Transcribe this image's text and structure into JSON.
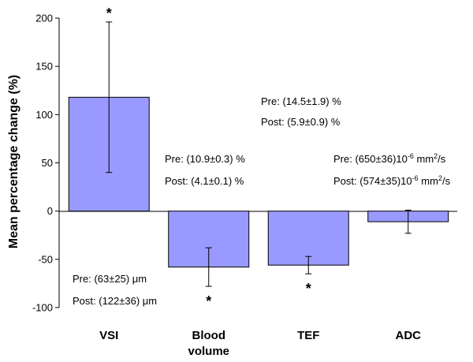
{
  "chart_data": {
    "type": "bar",
    "ylabel": "Mean percentage change (%)",
    "ylim": [
      -100,
      200
    ],
    "yticks": [
      -100,
      -50,
      0,
      50,
      100,
      150,
      200
    ],
    "grid": false,
    "categories": [
      {
        "lines": [
          "VSI"
        ]
      },
      {
        "lines": [
          "Blood",
          "volume"
        ]
      },
      {
        "lines": [
          "TEF"
        ]
      },
      {
        "lines": [
          "ADC"
        ]
      }
    ],
    "values": [
      118,
      -58,
      -56,
      -11
    ],
    "error_low": [
      40,
      -78,
      -65,
      -23
    ],
    "error_high": [
      196,
      -38,
      -47,
      1
    ],
    "significant": [
      true,
      true,
      true,
      false
    ],
    "star_label": "*",
    "bar_color": "#9999ff",
    "annotations": [
      {
        "pre": "Pre: (63±25) μm",
        "post": "Post: (122±36) μm"
      },
      {
        "pre": "Pre: (10.9±0.3) %",
        "post": "Post: (4.1±0.1) %"
      },
      {
        "pre": "Pre: (14.5±1.9) %",
        "post": "Post: (5.9±0.9) %"
      },
      {
        "pre_parts": [
          "Pre: (650±36)10",
          "-6",
          " mm",
          "2",
          "/s"
        ],
        "post_parts": [
          "Post: (574±35)10",
          "-6",
          " mm",
          "2",
          "/s"
        ]
      }
    ]
  }
}
